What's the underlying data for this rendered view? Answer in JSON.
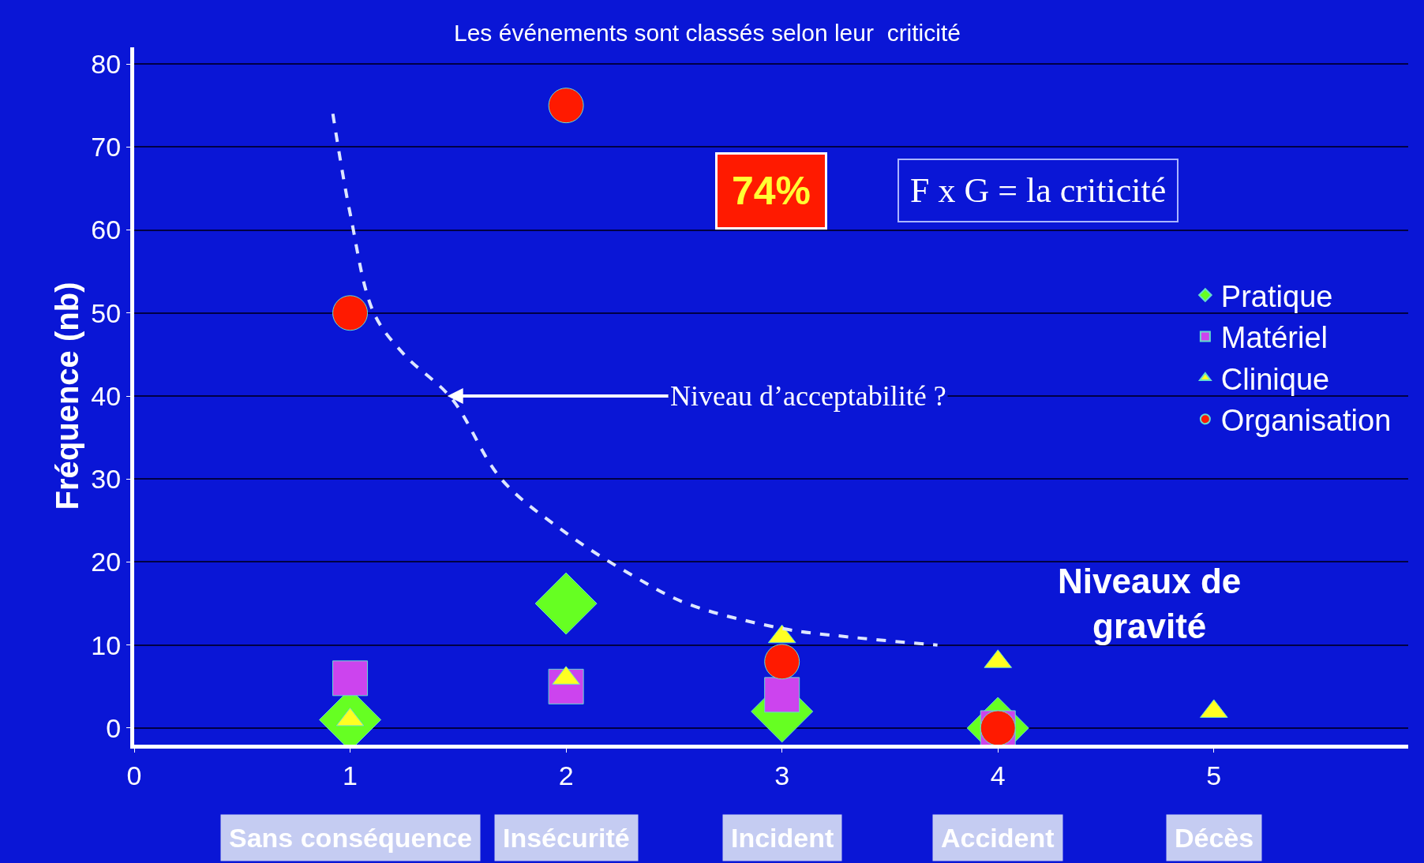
{
  "chart_data": {
    "type": "scatter",
    "subtitle": "Les événements sont classés selon leur  criticité",
    "xlabel": "Niveaux de\ngravité",
    "ylabel": "Fréquence (nb)",
    "xlim": [
      0,
      5.9
    ],
    "xticks": [
      0,
      1,
      2,
      3,
      4,
      5
    ],
    "ylim": [
      -2,
      82
    ],
    "yticks": [
      0,
      10,
      20,
      30,
      40,
      50,
      60,
      70,
      80
    ],
    "grid": "y",
    "legend": "top right",
    "series": [
      {
        "name": "Pratique",
        "color": "#66ff22",
        "marker": "diamond",
        "x": [
          1,
          2,
          3,
          4
        ],
        "values": [
          1,
          15,
          2,
          0
        ]
      },
      {
        "name": "Matériel",
        "color": "#cc44ee",
        "marker": "square",
        "x": [
          1,
          2,
          3,
          4
        ],
        "values": [
          6,
          5,
          4,
          0
        ]
      },
      {
        "name": "Clinique",
        "color": "#ffff22",
        "marker": "triangle",
        "x": [
          1,
          2,
          3,
          4,
          5
        ],
        "values": [
          1,
          6,
          11,
          8,
          2
        ]
      },
      {
        "name": "Organisation",
        "color": "#ff1a00",
        "marker": "circle",
        "x": [
          1,
          2,
          3,
          4
        ],
        "values": [
          50,
          75,
          8,
          0
        ]
      },
      {
        "type": "line",
        "color": "#dde6ff",
        "line_style": "dashed",
        "marker": "none",
        "x": [
          0.92,
          1.0,
          1.11,
          1.25,
          1.47,
          1.7,
          2.0,
          2.3,
          2.56,
          3.0,
          3.3,
          3.72
        ],
        "values": [
          74,
          62,
          50,
          45,
          39.7,
          30,
          23.5,
          18.5,
          15,
          12,
          11,
          10
        ]
      }
    ],
    "annotations": [
      "74%",
      "F x G = la criticité",
      {
        "text": "Niveau d’acceptabilité ?",
        "x": 1.45,
        "y": 40
      },
      "Sans conséquence",
      "Insécurité",
      "Incident",
      "Accident",
      "Décès"
    ]
  }
}
